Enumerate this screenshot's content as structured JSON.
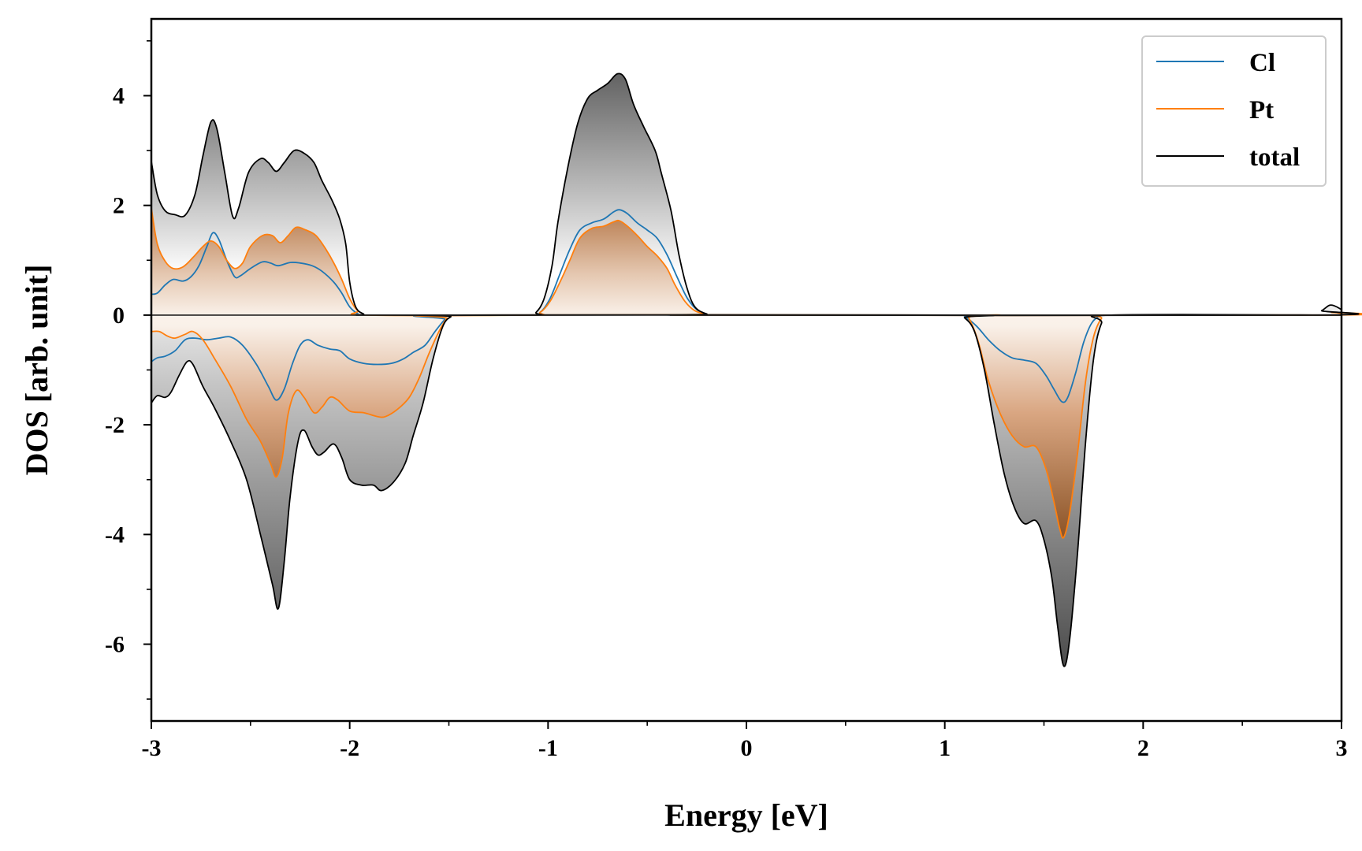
{
  "chart_data": {
    "type": "area",
    "xlabel": "Energy [eV]",
    "ylabel": "DOS [arb. unit]",
    "xlim": [
      -3,
      3
    ],
    "ylim": [
      -7.4,
      5.4
    ],
    "xticks": [
      -3,
      -2,
      -1,
      0,
      1,
      2,
      3
    ],
    "xtick_labels": [
      "-3",
      "-2",
      "-1",
      "0",
      "1",
      "2",
      "3"
    ],
    "yticks": [
      -6,
      -4,
      -2,
      0,
      2,
      4
    ],
    "ytick_labels": [
      "-6",
      "-4",
      "-2",
      "0",
      "2",
      "4"
    ],
    "grid": false,
    "legend": {
      "position": "top-right",
      "entries": [
        "Cl",
        "Pt",
        "total"
      ]
    },
    "colors": {
      "Cl": "#1f77b4",
      "Pt": "#ff7f0e",
      "total": "#000000"
    },
    "series": [
      {
        "name": "total",
        "spin_up": [
          [
            -3.0,
            2.8
          ],
          [
            -2.97,
            2.2
          ],
          [
            -2.93,
            1.9
          ],
          [
            -2.88,
            1.83
          ],
          [
            -2.83,
            1.82
          ],
          [
            -2.78,
            2.2
          ],
          [
            -2.74,
            2.9
          ],
          [
            -2.7,
            3.52
          ],
          [
            -2.67,
            3.4
          ],
          [
            -2.63,
            2.6
          ],
          [
            -2.59,
            1.8
          ],
          [
            -2.56,
            1.95
          ],
          [
            -2.51,
            2.6
          ],
          [
            -2.45,
            2.85
          ],
          [
            -2.41,
            2.78
          ],
          [
            -2.37,
            2.62
          ],
          [
            -2.33,
            2.78
          ],
          [
            -2.28,
            3.0
          ],
          [
            -2.23,
            2.95
          ],
          [
            -2.18,
            2.78
          ],
          [
            -2.14,
            2.45
          ],
          [
            -2.09,
            2.1
          ],
          [
            -2.05,
            1.75
          ],
          [
            -2.02,
            1.3
          ],
          [
            -2.0,
            0.6
          ],
          [
            -1.97,
            0.15
          ],
          [
            -1.93,
            0.02
          ],
          [
            -1.9,
            0.0
          ],
          [
            -1.1,
            0.0
          ],
          [
            -1.06,
            0.05
          ],
          [
            -1.02,
            0.3
          ],
          [
            -0.98,
            0.9
          ],
          [
            -0.95,
            1.7
          ],
          [
            -0.9,
            2.7
          ],
          [
            -0.85,
            3.5
          ],
          [
            -0.8,
            3.95
          ],
          [
            -0.75,
            4.1
          ],
          [
            -0.7,
            4.22
          ],
          [
            -0.65,
            4.4
          ],
          [
            -0.61,
            4.3
          ],
          [
            -0.57,
            3.85
          ],
          [
            -0.52,
            3.45
          ],
          [
            -0.46,
            3.0
          ],
          [
            -0.43,
            2.6
          ],
          [
            -0.38,
            1.9
          ],
          [
            -0.34,
            1.1
          ],
          [
            -0.3,
            0.5
          ],
          [
            -0.26,
            0.15
          ],
          [
            -0.2,
            0.02
          ],
          [
            -0.15,
            0.0
          ],
          [
            2.85,
            0.0
          ],
          [
            2.9,
            0.08
          ],
          [
            2.94,
            0.18
          ],
          [
            2.97,
            0.16
          ],
          [
            3.0,
            0.1
          ]
        ],
        "spin_down": [
          [
            -3.0,
            -1.6
          ],
          [
            -2.97,
            -1.47
          ],
          [
            -2.93,
            -1.5
          ],
          [
            -2.9,
            -1.4
          ],
          [
            -2.86,
            -1.1
          ],
          [
            -2.82,
            -0.85
          ],
          [
            -2.79,
            -0.9
          ],
          [
            -2.74,
            -1.3
          ],
          [
            -2.68,
            -1.7
          ],
          [
            -2.6,
            -2.3
          ],
          [
            -2.52,
            -3.0
          ],
          [
            -2.45,
            -4.0
          ],
          [
            -2.39,
            -4.9
          ],
          [
            -2.36,
            -5.35
          ],
          [
            -2.33,
            -4.5
          ],
          [
            -2.3,
            -3.3
          ],
          [
            -2.26,
            -2.3
          ],
          [
            -2.23,
            -2.1
          ],
          [
            -2.19,
            -2.4
          ],
          [
            -2.16,
            -2.55
          ],
          [
            -2.13,
            -2.5
          ],
          [
            -2.08,
            -2.35
          ],
          [
            -2.04,
            -2.6
          ],
          [
            -2.0,
            -3.0
          ],
          [
            -1.94,
            -3.1
          ],
          [
            -1.88,
            -3.1
          ],
          [
            -1.84,
            -3.2
          ],
          [
            -1.78,
            -3.05
          ],
          [
            -1.72,
            -2.7
          ],
          [
            -1.68,
            -2.2
          ],
          [
            -1.63,
            -1.6
          ],
          [
            -1.58,
            -0.8
          ],
          [
            -1.53,
            -0.2
          ],
          [
            -1.49,
            -0.03
          ],
          [
            -1.45,
            0.0
          ],
          [
            1.05,
            0.0
          ],
          [
            1.1,
            -0.05
          ],
          [
            1.15,
            -0.3
          ],
          [
            1.2,
            -1.0
          ],
          [
            1.25,
            -2.0
          ],
          [
            1.3,
            -2.9
          ],
          [
            1.35,
            -3.5
          ],
          [
            1.4,
            -3.8
          ],
          [
            1.46,
            -3.75
          ],
          [
            1.5,
            -4.1
          ],
          [
            1.54,
            -4.8
          ],
          [
            1.57,
            -5.7
          ],
          [
            1.6,
            -6.4
          ],
          [
            1.63,
            -5.9
          ],
          [
            1.67,
            -4.3
          ],
          [
            1.71,
            -2.3
          ],
          [
            1.75,
            -0.8
          ],
          [
            1.79,
            -0.15
          ],
          [
            1.84,
            0.0
          ],
          [
            3.0,
            0.0
          ]
        ]
      },
      {
        "name": "Cl",
        "spin_up": [
          [
            -3.0,
            0.38
          ],
          [
            -2.97,
            0.4
          ],
          [
            -2.93,
            0.55
          ],
          [
            -2.89,
            0.65
          ],
          [
            -2.84,
            0.62
          ],
          [
            -2.8,
            0.7
          ],
          [
            -2.76,
            0.9
          ],
          [
            -2.72,
            1.25
          ],
          [
            -2.69,
            1.5
          ],
          [
            -2.66,
            1.38
          ],
          [
            -2.62,
            1.0
          ],
          [
            -2.58,
            0.7
          ],
          [
            -2.55,
            0.72
          ],
          [
            -2.5,
            0.85
          ],
          [
            -2.44,
            0.97
          ],
          [
            -2.4,
            0.95
          ],
          [
            -2.36,
            0.9
          ],
          [
            -2.3,
            0.96
          ],
          [
            -2.25,
            0.95
          ],
          [
            -2.19,
            0.9
          ],
          [
            -2.14,
            0.8
          ],
          [
            -2.08,
            0.6
          ],
          [
            -2.04,
            0.4
          ],
          [
            -2.0,
            0.15
          ],
          [
            -1.96,
            0.03
          ],
          [
            -1.92,
            0.0
          ],
          [
            -1.1,
            0.0
          ],
          [
            -1.04,
            0.05
          ],
          [
            -0.99,
            0.3
          ],
          [
            -0.94,
            0.75
          ],
          [
            -0.89,
            1.2
          ],
          [
            -0.84,
            1.55
          ],
          [
            -0.78,
            1.68
          ],
          [
            -0.72,
            1.75
          ],
          [
            -0.67,
            1.88
          ],
          [
            -0.64,
            1.92
          ],
          [
            -0.6,
            1.85
          ],
          [
            -0.55,
            1.68
          ],
          [
            -0.5,
            1.55
          ],
          [
            -0.45,
            1.4
          ],
          [
            -0.4,
            1.1
          ],
          [
            -0.35,
            0.7
          ],
          [
            -0.3,
            0.32
          ],
          [
            -0.25,
            0.1
          ],
          [
            -0.2,
            0.02
          ],
          [
            -0.15,
            0.0
          ],
          [
            3.0,
            0.0
          ]
        ],
        "spin_down": [
          [
            -3.0,
            -0.85
          ],
          [
            -2.97,
            -0.78
          ],
          [
            -2.93,
            -0.75
          ],
          [
            -2.88,
            -0.65
          ],
          [
            -2.83,
            -0.45
          ],
          [
            -2.78,
            -0.42
          ],
          [
            -2.72,
            -0.45
          ],
          [
            -2.66,
            -0.42
          ],
          [
            -2.6,
            -0.4
          ],
          [
            -2.54,
            -0.55
          ],
          [
            -2.47,
            -0.9
          ],
          [
            -2.41,
            -1.3
          ],
          [
            -2.37,
            -1.55
          ],
          [
            -2.33,
            -1.35
          ],
          [
            -2.29,
            -0.9
          ],
          [
            -2.25,
            -0.55
          ],
          [
            -2.21,
            -0.45
          ],
          [
            -2.16,
            -0.55
          ],
          [
            -2.1,
            -0.62
          ],
          [
            -2.05,
            -0.65
          ],
          [
            -2.0,
            -0.8
          ],
          [
            -1.93,
            -0.88
          ],
          [
            -1.86,
            -0.9
          ],
          [
            -1.79,
            -0.88
          ],
          [
            -1.73,
            -0.8
          ],
          [
            -1.68,
            -0.68
          ],
          [
            -1.62,
            -0.55
          ],
          [
            -1.57,
            -0.3
          ],
          [
            -1.52,
            -0.08
          ],
          [
            -1.48,
            0.0
          ],
          [
            1.05,
            0.0
          ],
          [
            1.1,
            -0.03
          ],
          [
            1.16,
            -0.2
          ],
          [
            1.22,
            -0.45
          ],
          [
            1.28,
            -0.65
          ],
          [
            1.34,
            -0.78
          ],
          [
            1.4,
            -0.82
          ],
          [
            1.46,
            -0.88
          ],
          [
            1.51,
            -1.1
          ],
          [
            1.55,
            -1.35
          ],
          [
            1.59,
            -1.58
          ],
          [
            1.62,
            -1.5
          ],
          [
            1.66,
            -1.05
          ],
          [
            1.7,
            -0.5
          ],
          [
            1.74,
            -0.15
          ],
          [
            1.78,
            -0.02
          ],
          [
            1.82,
            0.0
          ],
          [
            3.0,
            0.0
          ]
        ]
      },
      {
        "name": "Pt",
        "spin_up": [
          [
            -3.0,
            1.95
          ],
          [
            -2.97,
            1.3
          ],
          [
            -2.93,
            0.98
          ],
          [
            -2.89,
            0.85
          ],
          [
            -2.84,
            0.88
          ],
          [
            -2.79,
            1.05
          ],
          [
            -2.74,
            1.25
          ],
          [
            -2.7,
            1.35
          ],
          [
            -2.66,
            1.25
          ],
          [
            -2.62,
            1.0
          ],
          [
            -2.58,
            0.85
          ],
          [
            -2.54,
            0.95
          ],
          [
            -2.5,
            1.25
          ],
          [
            -2.44,
            1.45
          ],
          [
            -2.39,
            1.45
          ],
          [
            -2.35,
            1.32
          ],
          [
            -2.31,
            1.45
          ],
          [
            -2.27,
            1.6
          ],
          [
            -2.22,
            1.55
          ],
          [
            -2.17,
            1.45
          ],
          [
            -2.12,
            1.2
          ],
          [
            -2.08,
            0.95
          ],
          [
            -2.04,
            0.65
          ],
          [
            -2.0,
            0.3
          ],
          [
            -1.96,
            0.08
          ],
          [
            -1.92,
            0.0
          ],
          [
            -1.1,
            0.0
          ],
          [
            -1.04,
            0.05
          ],
          [
            -0.99,
            0.25
          ],
          [
            -0.94,
            0.6
          ],
          [
            -0.89,
            1.0
          ],
          [
            -0.84,
            1.4
          ],
          [
            -0.78,
            1.58
          ],
          [
            -0.72,
            1.62
          ],
          [
            -0.67,
            1.7
          ],
          [
            -0.64,
            1.72
          ],
          [
            -0.6,
            1.62
          ],
          [
            -0.55,
            1.45
          ],
          [
            -0.5,
            1.25
          ],
          [
            -0.45,
            1.08
          ],
          [
            -0.4,
            0.85
          ],
          [
            -0.36,
            0.55
          ],
          [
            -0.31,
            0.25
          ],
          [
            -0.26,
            0.08
          ],
          [
            -0.2,
            0.02
          ],
          [
            -0.15,
            0.0
          ],
          [
            2.9,
            0.0
          ],
          [
            2.95,
            0.05
          ],
          [
            3.0,
            0.03
          ]
        ],
        "spin_down": [
          [
            -3.0,
            -0.3
          ],
          [
            -2.96,
            -0.3
          ],
          [
            -2.92,
            -0.38
          ],
          [
            -2.88,
            -0.42
          ],
          [
            -2.83,
            -0.35
          ],
          [
            -2.79,
            -0.3
          ],
          [
            -2.74,
            -0.45
          ],
          [
            -2.68,
            -0.8
          ],
          [
            -2.6,
            -1.3
          ],
          [
            -2.52,
            -1.9
          ],
          [
            -2.45,
            -2.3
          ],
          [
            -2.4,
            -2.7
          ],
          [
            -2.37,
            -2.95
          ],
          [
            -2.34,
            -2.6
          ],
          [
            -2.31,
            -1.8
          ],
          [
            -2.27,
            -1.38
          ],
          [
            -2.23,
            -1.5
          ],
          [
            -2.18,
            -1.78
          ],
          [
            -2.14,
            -1.68
          ],
          [
            -2.1,
            -1.5
          ],
          [
            -2.06,
            -1.55
          ],
          [
            -2.0,
            -1.75
          ],
          [
            -1.93,
            -1.78
          ],
          [
            -1.86,
            -1.85
          ],
          [
            -1.82,
            -1.85
          ],
          [
            -1.76,
            -1.72
          ],
          [
            -1.7,
            -1.5
          ],
          [
            -1.65,
            -1.15
          ],
          [
            -1.6,
            -0.7
          ],
          [
            -1.55,
            -0.3
          ],
          [
            -1.51,
            -0.06
          ],
          [
            -1.47,
            0.0
          ],
          [
            1.08,
            0.0
          ],
          [
            1.12,
            -0.05
          ],
          [
            1.17,
            -0.5
          ],
          [
            1.22,
            -1.2
          ],
          [
            1.28,
            -1.8
          ],
          [
            1.34,
            -2.2
          ],
          [
            1.4,
            -2.4
          ],
          [
            1.46,
            -2.4
          ],
          [
            1.51,
            -2.8
          ],
          [
            1.55,
            -3.4
          ],
          [
            1.58,
            -3.9
          ],
          [
            1.6,
            -4.05
          ],
          [
            1.63,
            -3.6
          ],
          [
            1.67,
            -2.5
          ],
          [
            1.71,
            -1.2
          ],
          [
            1.75,
            -0.4
          ],
          [
            1.79,
            -0.06
          ],
          [
            1.83,
            0.0
          ],
          [
            3.0,
            0.0
          ]
        ]
      }
    ]
  }
}
